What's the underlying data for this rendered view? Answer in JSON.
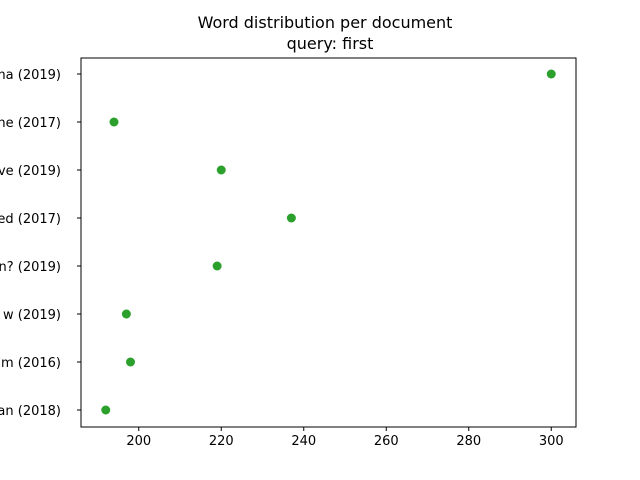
{
  "chart_data": {
    "type": "scatter",
    "title_lines": [
      "Word distribution per document",
      "query: first"
    ],
    "xlabel": "",
    "ylabel": "",
    "xlim": [
      186,
      306
    ],
    "x_ticks": [
      200,
      220,
      240,
      260,
      280,
      300
    ],
    "categories": [
      "ma (2019)",
      "ne (2017)",
      "ve (2019)",
      "ed (2017)",
      "n? (2019)",
      "w (2019)",
      "m (2016)",
      "an (2018)"
    ],
    "series": [
      {
        "values": [
          300,
          194,
          220,
          237,
          219,
          197,
          198,
          192
        ],
        "color": "#2ca02c"
      }
    ],
    "grid": false,
    "legend": false
  }
}
